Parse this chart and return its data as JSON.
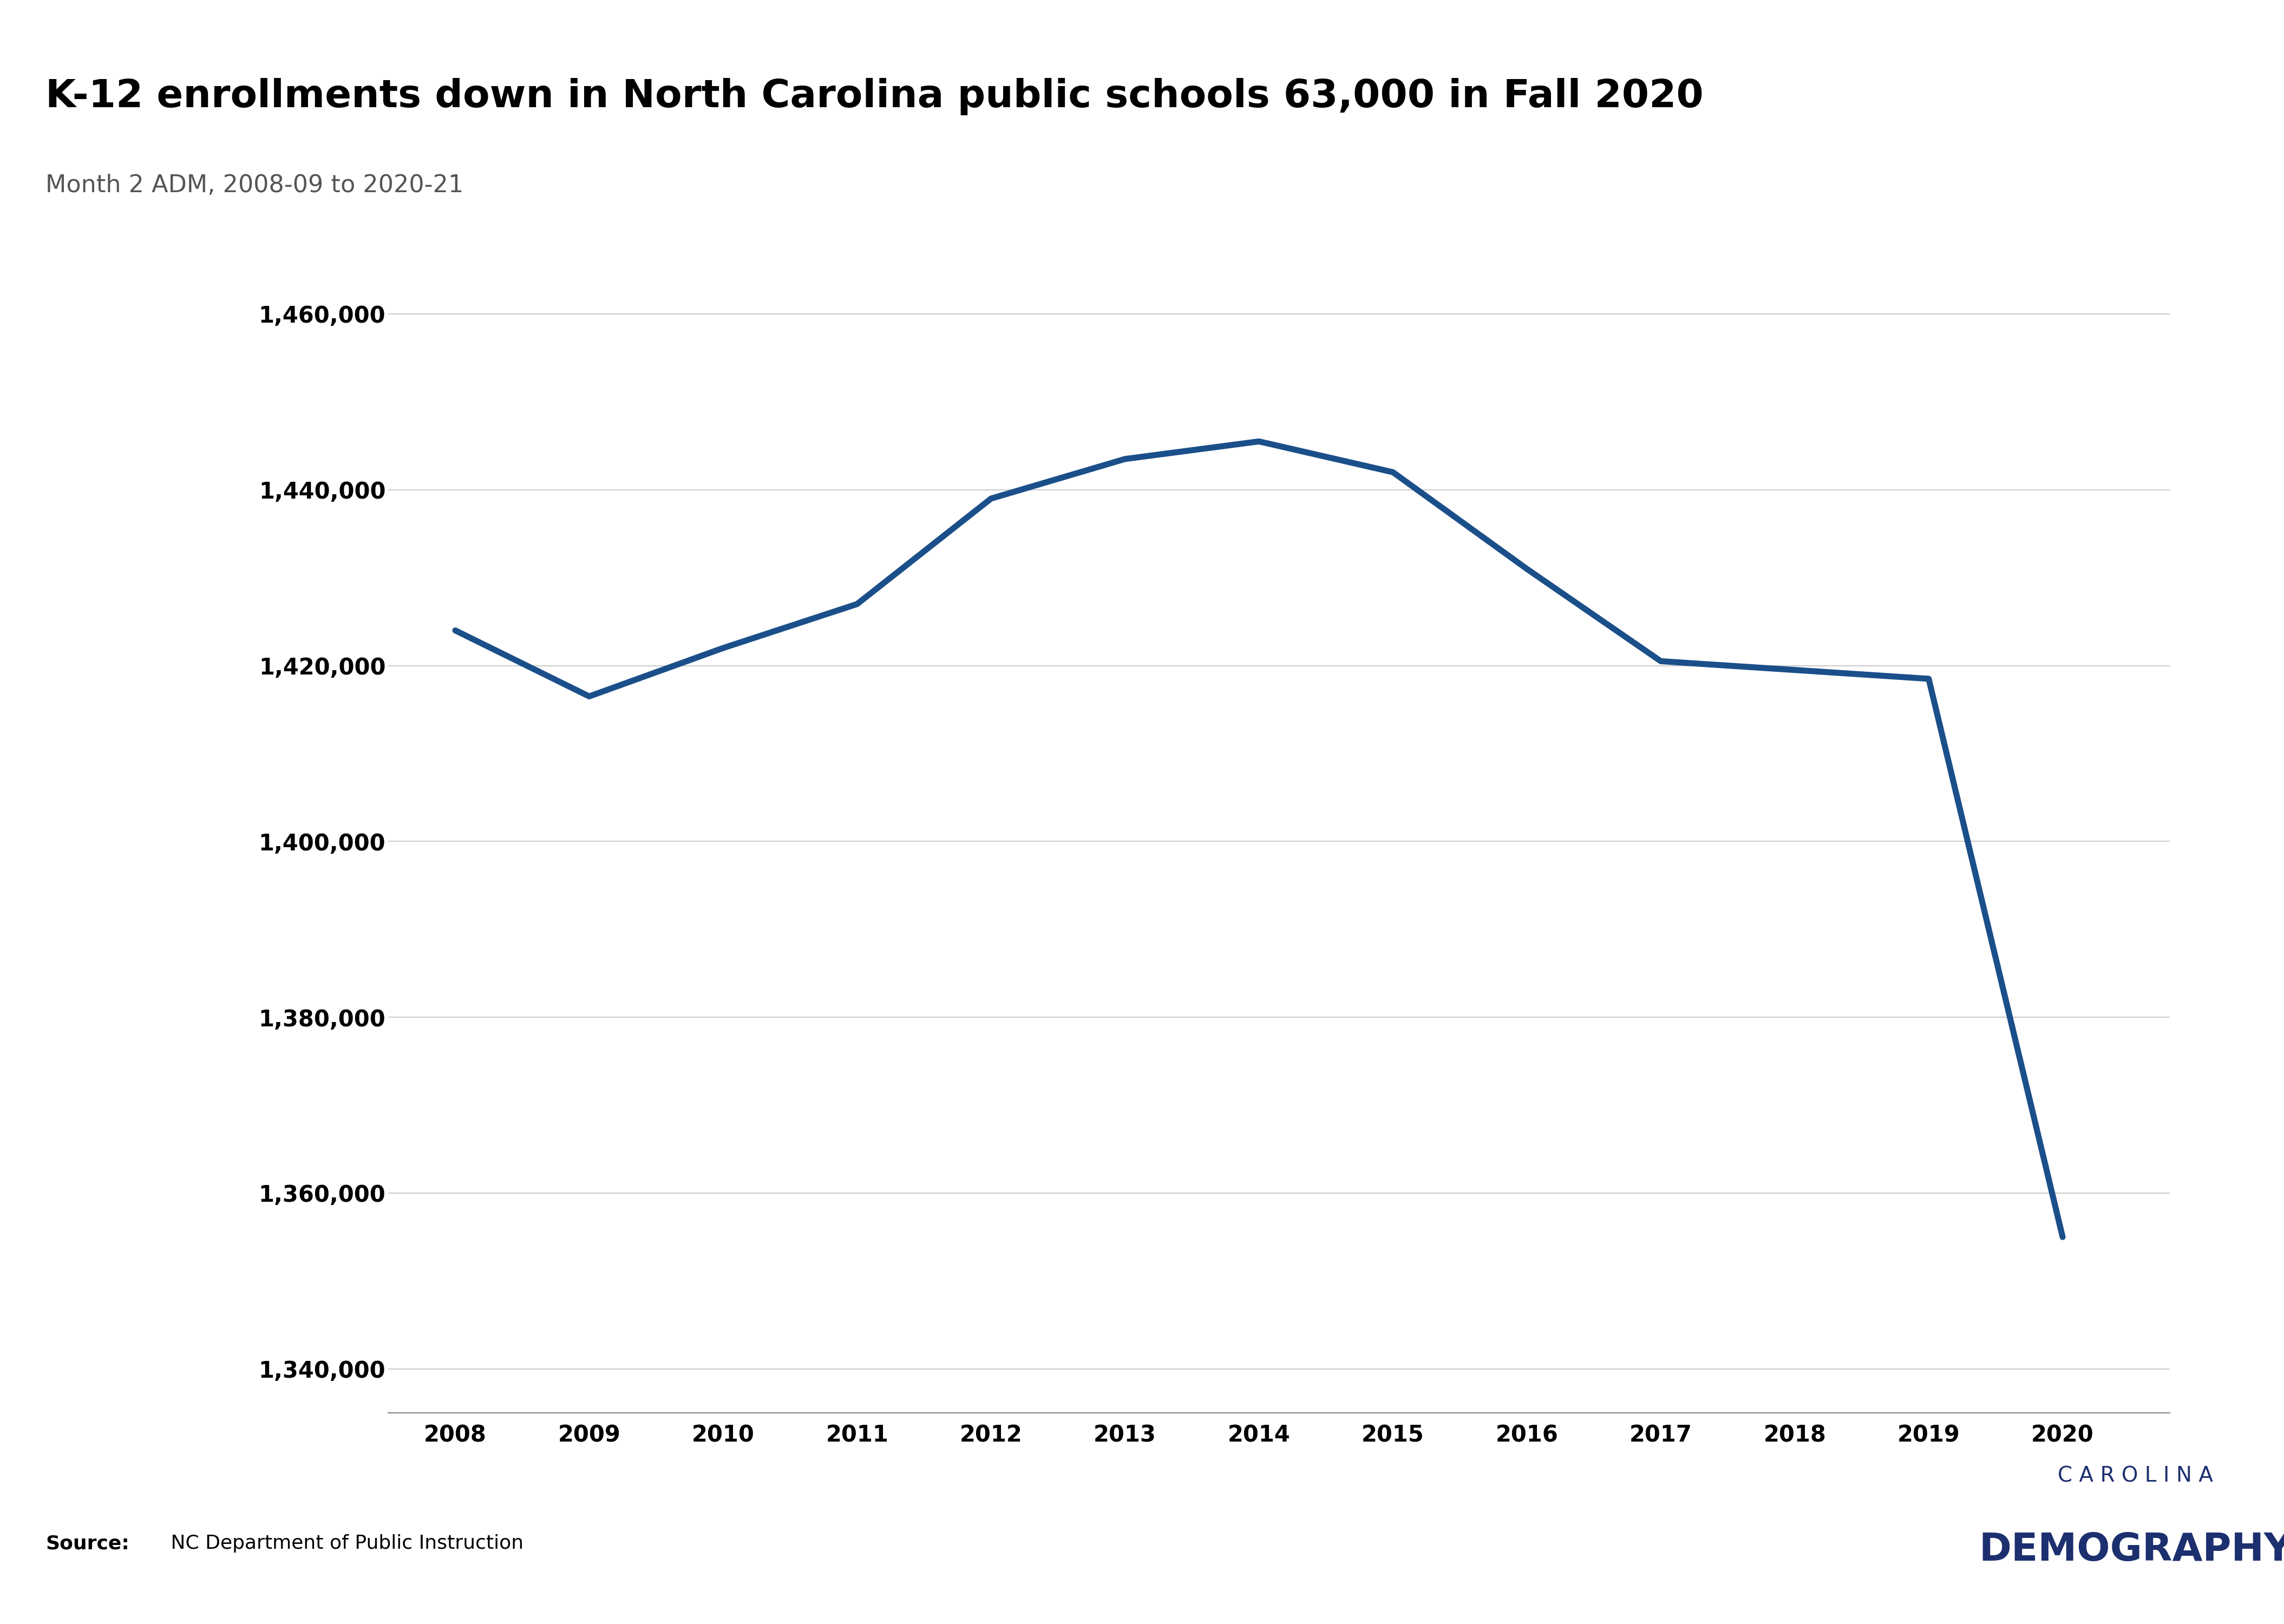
{
  "title": "K-12 enrollments down in North Carolina public schools 63,000 in Fall 2020",
  "subtitle": "Month 2 ADM, 2008-09 to 2020-21",
  "source_bold": "Source:",
  "source_text": " NC Department of Public Instruction",
  "years": [
    2008,
    2009,
    2010,
    2011,
    2012,
    2013,
    2014,
    2015,
    2016,
    2017,
    2018,
    2019,
    2020
  ],
  "values": [
    1424000,
    1416500,
    1422000,
    1427000,
    1439000,
    1443500,
    1445500,
    1442000,
    1431000,
    1420500,
    1419500,
    1418500,
    1355000
  ],
  "line_color": "#1a4f8a",
  "line_width": 8,
  "ylim_min": 1335000,
  "ylim_max": 1468000,
  "ytick_values": [
    1340000,
    1360000,
    1380000,
    1400000,
    1420000,
    1440000,
    1460000
  ],
  "background_color": "#ffffff",
  "header_color": "#1c2f6e",
  "footer_color": "#1c2f6e",
  "title_fontsize": 52,
  "subtitle_fontsize": 32,
  "tick_fontsize": 30,
  "source_fontsize": 26,
  "brand_color": "#1c2f6e",
  "carolina_fontsize": 28,
  "demography_fontsize": 52,
  "grid_color": "#cccccc"
}
